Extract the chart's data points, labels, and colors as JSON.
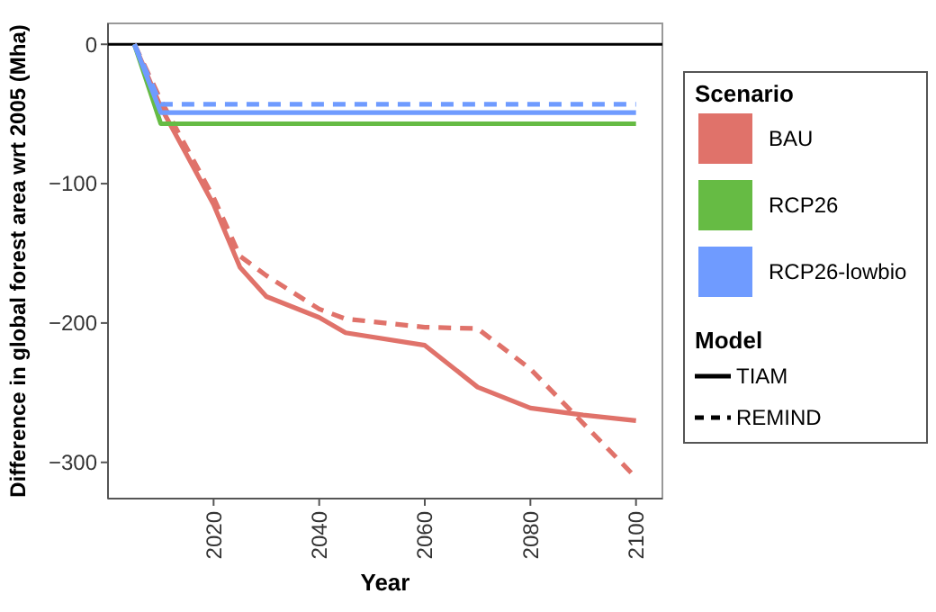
{
  "chart_data": {
    "type": "line",
    "xlabel": "Year",
    "ylabel": "Difference in global forest area wrt 2005 (Mha)",
    "legend_title": [
      "Scenario",
      "Model"
    ],
    "legend": "right",
    "xlim": [
      2000,
      2105
    ],
    "ylim": [
      -326,
      15
    ],
    "xticks": [
      2020,
      2040,
      2060,
      2080,
      2100
    ],
    "yticks": [
      0,
      -100,
      -200,
      -300
    ],
    "annotations": [
      "TIAM",
      "REMIND"
    ],
    "ref_lines": [
      {
        "axis": "y",
        "value": 0,
        "color": "#000000"
      }
    ],
    "series": [
      {
        "name": "BAU",
        "line_style": "solid",
        "color": "#e0726a",
        "x": [
          2005,
          2010,
          2015,
          2020,
          2025,
          2030,
          2040,
          2045,
          2060,
          2070,
          2080,
          2090,
          2100
        ],
        "values": [
          0,
          -45,
          -80,
          -115,
          -160,
          -181,
          -196,
          -207,
          -216,
          -246,
          -261,
          -266,
          -270
        ]
      },
      {
        "line_style": "dashed",
        "color": "#e0726a",
        "x": [
          2005,
          2010,
          2020,
          2025,
          2030,
          2040,
          2045,
          2060,
          2070,
          2080,
          2100
        ],
        "values": [
          0,
          -40,
          -110,
          -152,
          -166,
          -190,
          -197,
          -203,
          -204,
          -233,
          -311
        ]
      },
      {
        "name": "RCP26",
        "line_style": "solid",
        "color": "#66bb44",
        "x": [
          2005,
          2010,
          2100
        ],
        "values": [
          0,
          -57,
          -57
        ]
      },
      {
        "name": "RCP26-lowbio",
        "line_style": "solid",
        "color": "#6f9bff",
        "x": [
          2005,
          2010,
          2100
        ],
        "values": [
          0,
          -49,
          -49
        ]
      },
      {
        "line_style": "dashed",
        "color": "#6f9bff",
        "x": [
          2005,
          2010,
          2100
        ],
        "values": [
          0,
          -43,
          -43
        ]
      }
    ]
  }
}
